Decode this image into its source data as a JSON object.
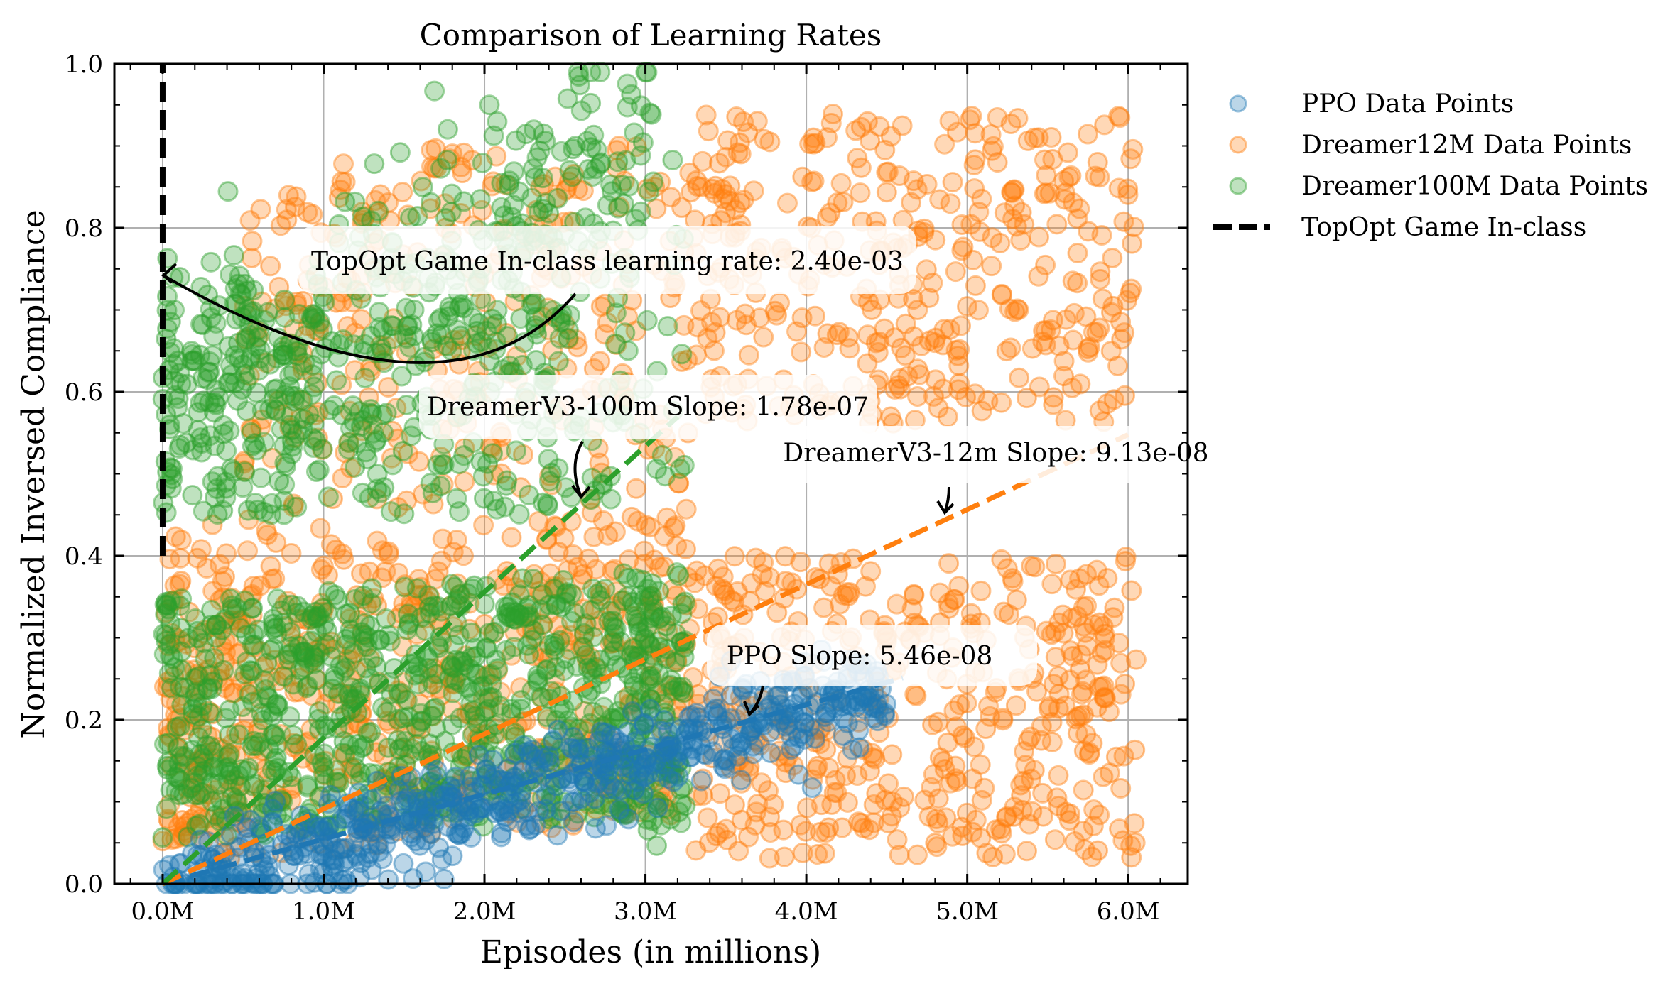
{
  "chart_data": {
    "type": "scatter",
    "title": "Comparison of Learning Rates",
    "xlabel": "Episodes (in millions)",
    "ylabel": "Normalized Inversed Compliance",
    "xlim": [
      -0.3,
      6.37
    ],
    "ylim": [
      0.0,
      1.0
    ],
    "x_ticks": [
      0,
      1,
      2,
      3,
      4,
      5,
      6
    ],
    "x_tick_labels": [
      "0.0M",
      "1.0M",
      "2.0M",
      "3.0M",
      "4.0M",
      "5.0M",
      "6.0M"
    ],
    "y_ticks": [
      0.0,
      0.2,
      0.4,
      0.6,
      0.8,
      1.0
    ],
    "y_tick_labels": [
      "0.0",
      "0.2",
      "0.4",
      "0.6",
      "0.8",
      "1.0"
    ],
    "grid": true,
    "legend_position": "outside-right-top",
    "series": [
      {
        "name": "PPO Data Points",
        "color": "#1f77b4",
        "alpha": 0.35,
        "x_range_millions": [
          0.0,
          4.5
        ],
        "trend_slope_per_episode": 5.46e-08,
        "approx_point_count": 600,
        "distribution": "clustered along trend line, y roughly 0.0-0.3"
      },
      {
        "name": "Dreamer12M Data Points",
        "color": "#ff7f0e",
        "alpha": 0.35,
        "x_range_millions": [
          0.0,
          6.05
        ],
        "trend_slope_per_episode": 9.13e-08,
        "approx_point_count": 1800,
        "distribution": "bimodal bands around y≈0.05-0.4 and y≈0.55-0.95, spread across full x range"
      },
      {
        "name": "Dreamer100M Data Points",
        "color": "#2ca02c",
        "alpha": 0.35,
        "x_range_millions": [
          0.0,
          3.25
        ],
        "trend_slope_per_episode": 1.78e-07,
        "approx_point_count": 1500,
        "distribution": "dense band y≈0.05-0.4 plus upper cloud y≈0.4-1.0 rising with x"
      }
    ],
    "trend_lines": [
      {
        "name": "PPO trend",
        "color": "#1f77b4",
        "x_range_millions": [
          0.0,
          4.6
        ],
        "slope": 5.46e-08
      },
      {
        "name": "DreamerV3-12m trend",
        "color": "#ff7f0e",
        "x_range_millions": [
          0.0,
          6.0
        ],
        "slope": 9.13e-08
      },
      {
        "name": "DreamerV3-100m trend",
        "color": "#2ca02c",
        "x_range_millions": [
          0.0,
          3.2
        ],
        "slope": 1.78e-07
      }
    ],
    "reference_line": {
      "name": "TopOpt Game In-class",
      "color": "#000000",
      "x_millions": 0.0,
      "y_range": [
        0.4,
        1.0
      ],
      "learning_rate": 0.0024
    },
    "annotations": [
      {
        "text": "TopOpt Game In-class learning rate: 2.40e-03",
        "points_to": [
          0.0,
          0.745
        ],
        "anchor": [
          2.55,
          0.72
        ]
      },
      {
        "text": "DreamerV3-100m Slope: 1.78e-07",
        "points_to": [
          2.6,
          0.47
        ],
        "anchor": [
          2.6,
          0.58
        ]
      },
      {
        "text": "DreamerV3-12m Slope: 9.13e-08",
        "points_to": [
          4.85,
          0.45
        ],
        "anchor": [
          4.85,
          0.52
        ]
      },
      {
        "text": "PPO Slope: 5.46e-08",
        "points_to": [
          3.65,
          0.205
        ],
        "anchor": [
          3.65,
          0.245
        ]
      }
    ],
    "legend": [
      {
        "label": "PPO Data Points",
        "marker": "circle",
        "color": "#1f77b4"
      },
      {
        "label": "Dreamer12M Data Points",
        "marker": "circle",
        "color": "#ff7f0e"
      },
      {
        "label": "Dreamer100M Data Points",
        "marker": "circle",
        "color": "#2ca02c"
      },
      {
        "label": "TopOpt Game In-class",
        "marker": "dashed-line",
        "color": "#000000"
      }
    ]
  }
}
